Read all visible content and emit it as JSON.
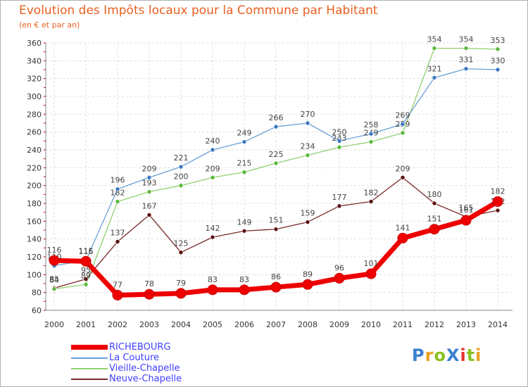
{
  "title": "Evolution des Impôts locaux pour la Commune par Habitant",
  "subtitle": "(en € et par an)",
  "logo_text": "ProXiti",
  "logo_colors": [
    "#3a7fd0",
    "#e8a020",
    "#8ac020",
    "#3a7fd0",
    "#e83030",
    "#8ac020",
    "#e8a020"
  ],
  "chart_data": {
    "type": "line",
    "title": "Evolution des Impôts locaux pour la Commune par Habitant",
    "subtitle": "(en € et par an)",
    "x": [
      "2000",
      "2001",
      "2002",
      "2003",
      "2004",
      "2005",
      "2006",
      "2007",
      "2008",
      "2009",
      "2010",
      "2011",
      "2012",
      "2013",
      "2014"
    ],
    "ylim": [
      60,
      360
    ],
    "yticks": [
      60,
      80,
      100,
      120,
      140,
      160,
      180,
      200,
      220,
      240,
      260,
      280,
      300,
      320,
      340,
      360
    ],
    "grid": true,
    "series": [
      {
        "name": "Neuve-Chapelle",
        "color": "#7a2828",
        "marker": "#5a1010",
        "width": 1.3,
        "values": [
          85,
          95,
          137,
          167,
          125,
          142,
          149,
          151,
          159,
          177,
          182,
          209,
          180,
          165,
          172
        ]
      },
      {
        "name": "Vieille-Chapelle",
        "color": "#90d070",
        "marker": "#5cb83c",
        "width": 1.3,
        "values": [
          84,
          89,
          182,
          193,
          200,
          209,
          215,
          225,
          234,
          243,
          249,
          259,
          354,
          354,
          353
        ]
      },
      {
        "name": "La Couture",
        "color": "#6aa0d8",
        "marker": "#3a78c0",
        "width": 1.3,
        "values": [
          110,
          116,
          196,
          209,
          221,
          240,
          249,
          266,
          270,
          250,
          258,
          269,
          321,
          331,
          330
        ]
      },
      {
        "name": "RICHEBOURG",
        "color": "#ee0000",
        "marker": "#ee0000",
        "width": 7,
        "values": [
          116,
          115,
          77,
          78,
          79,
          83,
          83,
          86,
          89,
          96,
          101,
          141,
          151,
          161,
          182
        ]
      }
    ],
    "legend_order": [
      "RICHEBOURG",
      "La Couture",
      "Vieille-Chapelle",
      "Neuve-Chapelle"
    ],
    "legend_colors": [
      "#ee0000",
      "#6aa0d8",
      "#90d070",
      "#7a2828"
    ],
    "legend_text_color": "#4040ff"
  }
}
